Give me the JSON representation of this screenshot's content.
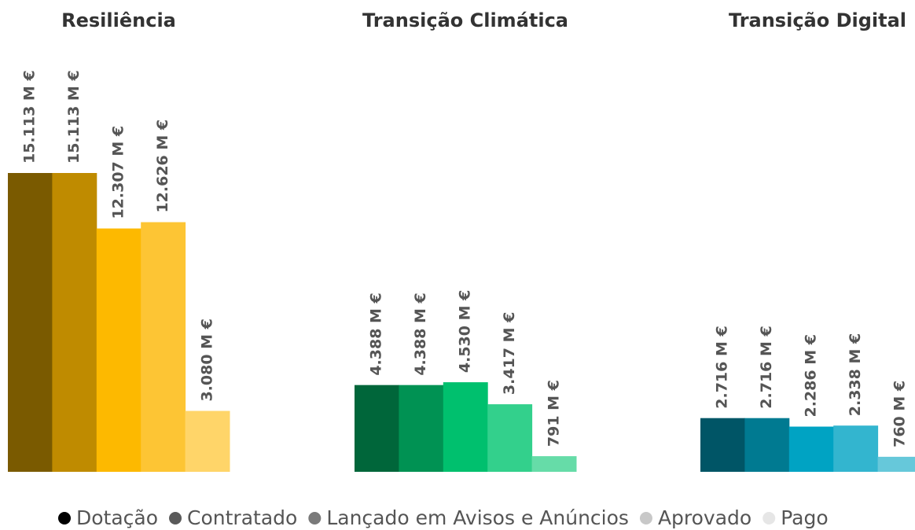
{
  "chart_data": {
    "type": "bar",
    "categories": [
      "Resiliência",
      "Transição Climática",
      "Transição Digital"
    ],
    "series": [
      {
        "name": "Dotação",
        "color": "#000000",
        "bar_colors": [
          "#7a5a00",
          "#00663a",
          "#005566"
        ],
        "values": [
          15113,
          4388,
          2716
        ],
        "value_labels": [
          "15.113 M €",
          "4.388 M €",
          "2.716 M €"
        ]
      },
      {
        "name": "Contratado",
        "color": "#5a5a5a",
        "bar_colors": [
          "#bf8b00",
          "#009253",
          "#007a91"
        ],
        "values": [
          15113,
          4388,
          2716
        ],
        "value_labels": [
          "15.113 M €",
          "4.388 M €",
          "2.716 M €"
        ]
      },
      {
        "name": "Lançado em Avisos e Anúncios",
        "color": "#7a7a7a",
        "bar_colors": [
          "#fdb900",
          "#00c06e",
          "#00a3c3"
        ],
        "values": [
          12307,
          4530,
          2286
        ],
        "value_labels": [
          "12.307 M €",
          "4.530 M €",
          "2.286 M €"
        ]
      },
      {
        "name": "Aprovado",
        "color": "#c8c8c8",
        "bar_colors": [
          "#fdc534",
          "#33d08c",
          "#33b5cf"
        ],
        "values": [
          12626,
          3417,
          2338
        ],
        "value_labels": [
          "12.626 M €",
          "3.417 M €",
          "2.338 M €"
        ]
      },
      {
        "name": "Pago",
        "color": "#e6e6e6",
        "bar_colors": [
          "#ffd569",
          "#66dca8",
          "#66c8da"
        ],
        "values": [
          3080,
          791,
          760
        ],
        "value_labels": [
          "3.080 M €",
          "791 M €",
          "760 M €"
        ]
      }
    ]
  }
}
